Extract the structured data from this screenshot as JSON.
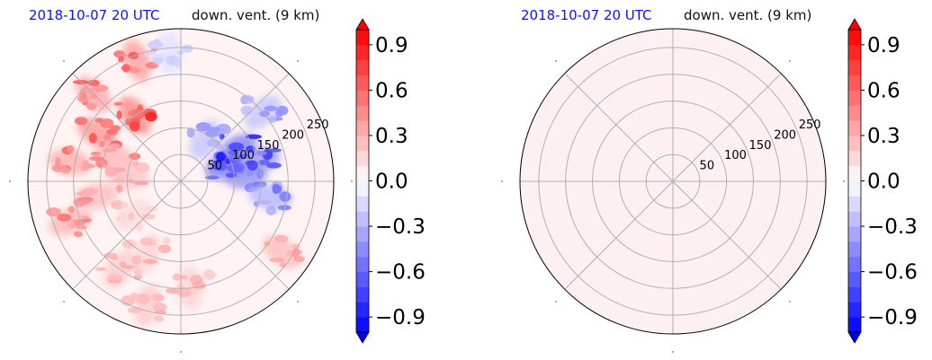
{
  "charts": [
    {
      "title_left": "2018-10-07 20 UTC",
      "title_right": "down. vent. (9 km)"
    },
    {
      "title_left": "2018-10-07 20 UTC",
      "title_right": "down. vent. (9 km)"
    }
  ],
  "colors": {
    "blue": "#0000ff",
    "red": "#ff0000",
    "white": "#ffffff",
    "title_blue": "#1010ff",
    "grid": "#b0b0b0",
    "empty_fill": "#fdf0f0"
  },
  "chart_data": [
    {
      "type": "heatmap",
      "projection": "polar",
      "title": "2018-10-07 20 UTC",
      "subtitle": "down. vent. (9 km)",
      "radial_ticks": [
        50,
        100,
        150,
        200,
        250
      ],
      "angular_grid_step_deg": 45,
      "grid": true,
      "colorbar": {
        "ticks": [
          -0.9,
          -0.6,
          -0.3,
          0.0,
          0.3,
          0.6,
          0.9
        ],
        "tick_labels": [
          "−0.9",
          "−0.6",
          "−0.3",
          "0.0",
          "0.3",
          "0.6",
          "0.9"
        ],
        "range": [
          -1.0,
          1.0
        ],
        "extend": "both",
        "colormap": "bwr"
      },
      "field": "mixed",
      "blobs": [
        {
          "r": 230,
          "theta": 135,
          "v": 0.6
        },
        {
          "r": 180,
          "theta": 150,
          "v": 0.7
        },
        {
          "r": 130,
          "theta": 160,
          "v": 0.5
        },
        {
          "r": 150,
          "theta": 125,
          "v": 0.8
        },
        {
          "r": 210,
          "theta": 170,
          "v": 0.55
        },
        {
          "r": 160,
          "theta": 190,
          "v": 0.45
        },
        {
          "r": 220,
          "theta": 200,
          "v": 0.5
        },
        {
          "r": 100,
          "theta": 175,
          "v": 0.4
        },
        {
          "r": 240,
          "theta": 110,
          "v": 0.65
        },
        {
          "r": 200,
          "theta": 235,
          "v": 0.35
        },
        {
          "r": 150,
          "theta": 245,
          "v": 0.3
        },
        {
          "r": 240,
          "theta": 255,
          "v": 0.35
        },
        {
          "r": 200,
          "theta": 275,
          "v": 0.3
        },
        {
          "r": 110,
          "theta": 215,
          "v": 0.25
        },
        {
          "r": 90,
          "theta": 20,
          "v": -0.9
        },
        {
          "r": 120,
          "theta": 30,
          "v": -0.85
        },
        {
          "r": 150,
          "theta": 15,
          "v": -0.7
        },
        {
          "r": 120,
          "theta": 5,
          "v": -0.75
        },
        {
          "r": 170,
          "theta": 350,
          "v": -0.5
        },
        {
          "r": 200,
          "theta": 40,
          "v": -0.4
        },
        {
          "r": 90,
          "theta": 60,
          "v": -0.4
        },
        {
          "r": 230,
          "theta": 325,
          "v": 0.45
        },
        {
          "r": 240,
          "theta": 95,
          "v": -0.2
        }
      ]
    },
    {
      "type": "heatmap",
      "projection": "polar",
      "title": "2018-10-07 20 UTC",
      "subtitle": "down. vent. (9 km)",
      "radial_ticks": [
        50,
        100,
        150,
        200,
        250
      ],
      "angular_grid_step_deg": 45,
      "grid": true,
      "colorbar": {
        "ticks": [
          -0.9,
          -0.6,
          -0.3,
          0.0,
          0.3,
          0.6,
          0.9
        ],
        "tick_labels": [
          "−0.9",
          "−0.6",
          "−0.3",
          "0.0",
          "0.3",
          "0.6",
          "0.9"
        ],
        "range": [
          -1.0,
          1.0
        ],
        "extend": "both",
        "colormap": "bwr"
      },
      "field": "uniform",
      "uniform_value": 0.05
    }
  ]
}
